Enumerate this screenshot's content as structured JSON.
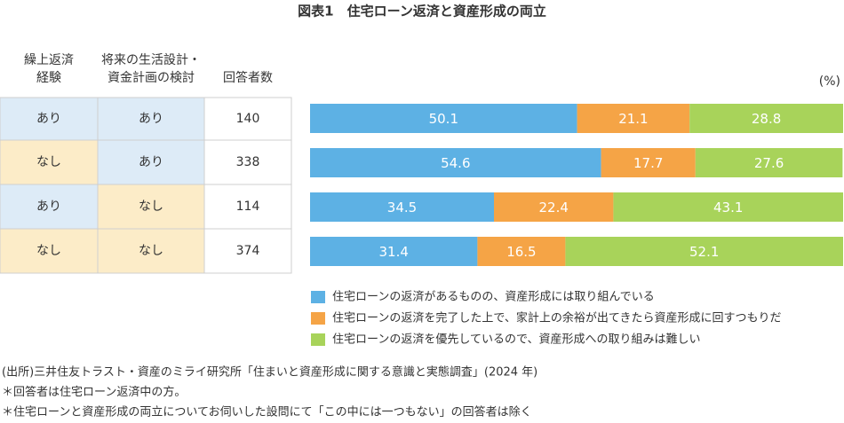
{
  "chart_data": {
    "type": "stacked_barh",
    "title": "図表1　住宅ローン返済と資産形成の両立",
    "unit_label": "(%)",
    "xlim": [
      0,
      100
    ],
    "series": [
      {
        "name": "住宅ローンの返済があるものの、資産形成には取り組んでいる",
        "color": "#5db1e4",
        "values": [
          50.1,
          54.6,
          34.5,
          31.4
        ]
      },
      {
        "name": "住宅ローンの返済を完了した上で、家計上の余裕が出てきたら資産形成に回すつもりだ",
        "color": "#f5a446",
        "values": [
          21.1,
          17.7,
          22.4,
          16.5
        ]
      },
      {
        "name": "住宅ローンの返済を優先しているので、資産形成への取り組みは難しい",
        "color": "#a8d35a",
        "values": [
          28.8,
          27.6,
          43.1,
          52.1
        ]
      }
    ]
  },
  "table": {
    "headers": [
      [
        "繰上返済",
        "経験"
      ],
      [
        "将来の生活設計・",
        "資金計画の検討"
      ],
      [
        "回答者数"
      ]
    ],
    "rows": [
      [
        "あり",
        "あり",
        140
      ],
      [
        "なし",
        "あり",
        338
      ],
      [
        "あり",
        "なし",
        114
      ],
      [
        "なし",
        "なし",
        374
      ]
    ],
    "cell_colors": {
      "あり": "#ddebf7",
      "なし": "#fcecc8"
    }
  },
  "notes": [
    "(出所)三井住友トラスト・資産のミライ研究所「住まいと資産形成に関する意識と実態調査」(2024 年)",
    "＊回答者は住宅ローン返済中の方。",
    "＊住宅ローンと資産形成の両立についてお伺いした設問にて「この中には一つもない」の回答者は除く"
  ]
}
